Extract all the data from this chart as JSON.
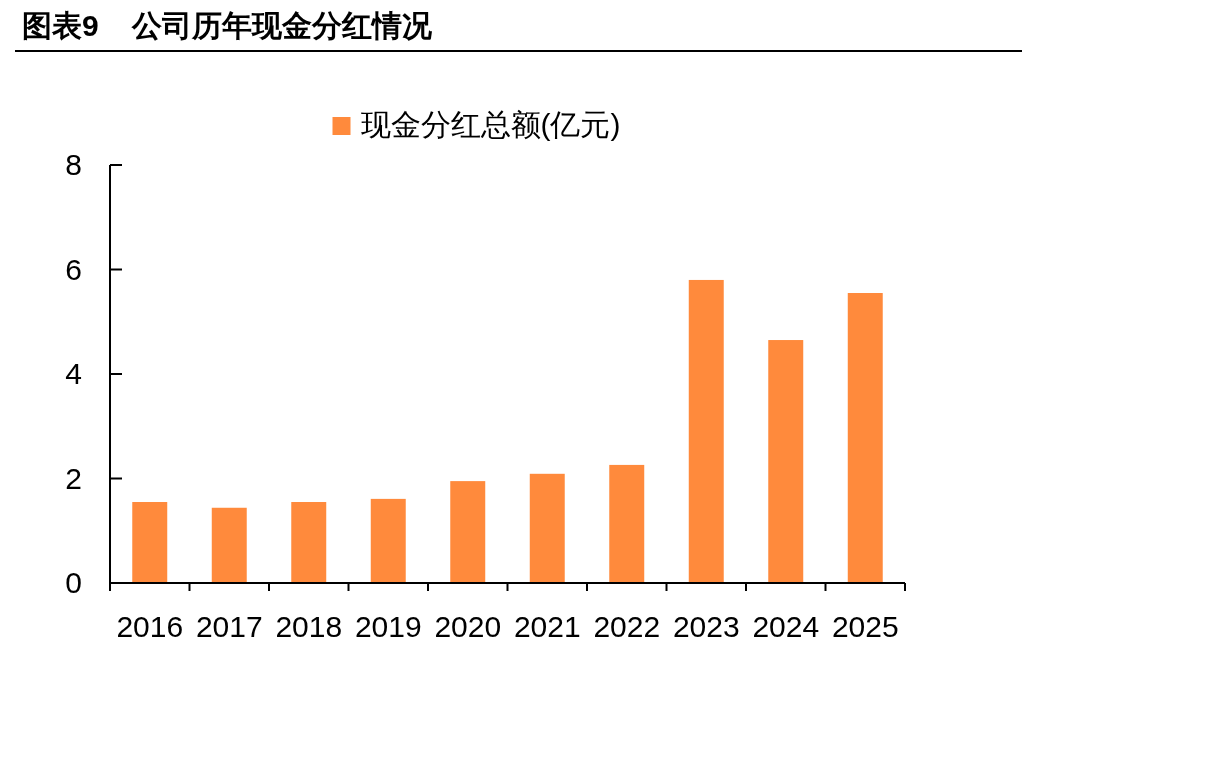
{
  "chart_data": {
    "type": "bar",
    "title": "图表9    公司历年现金分红情况",
    "categories": [
      "2016",
      "2017",
      "2018",
      "2019",
      "2020",
      "2021",
      "2022",
      "2023",
      "2024",
      "2025"
    ],
    "series": [
      {
        "name": "现金分红总额(亿元)",
        "color": "#ff8a3c",
        "values": [
          1.55,
          1.44,
          1.55,
          1.61,
          1.95,
          2.09,
          2.26,
          5.8,
          4.65,
          5.55
        ]
      }
    ],
    "ylim": [
      0,
      8
    ],
    "yticks": [
      0,
      2,
      4,
      6,
      8
    ],
    "legend": "top",
    "grid": false
  }
}
